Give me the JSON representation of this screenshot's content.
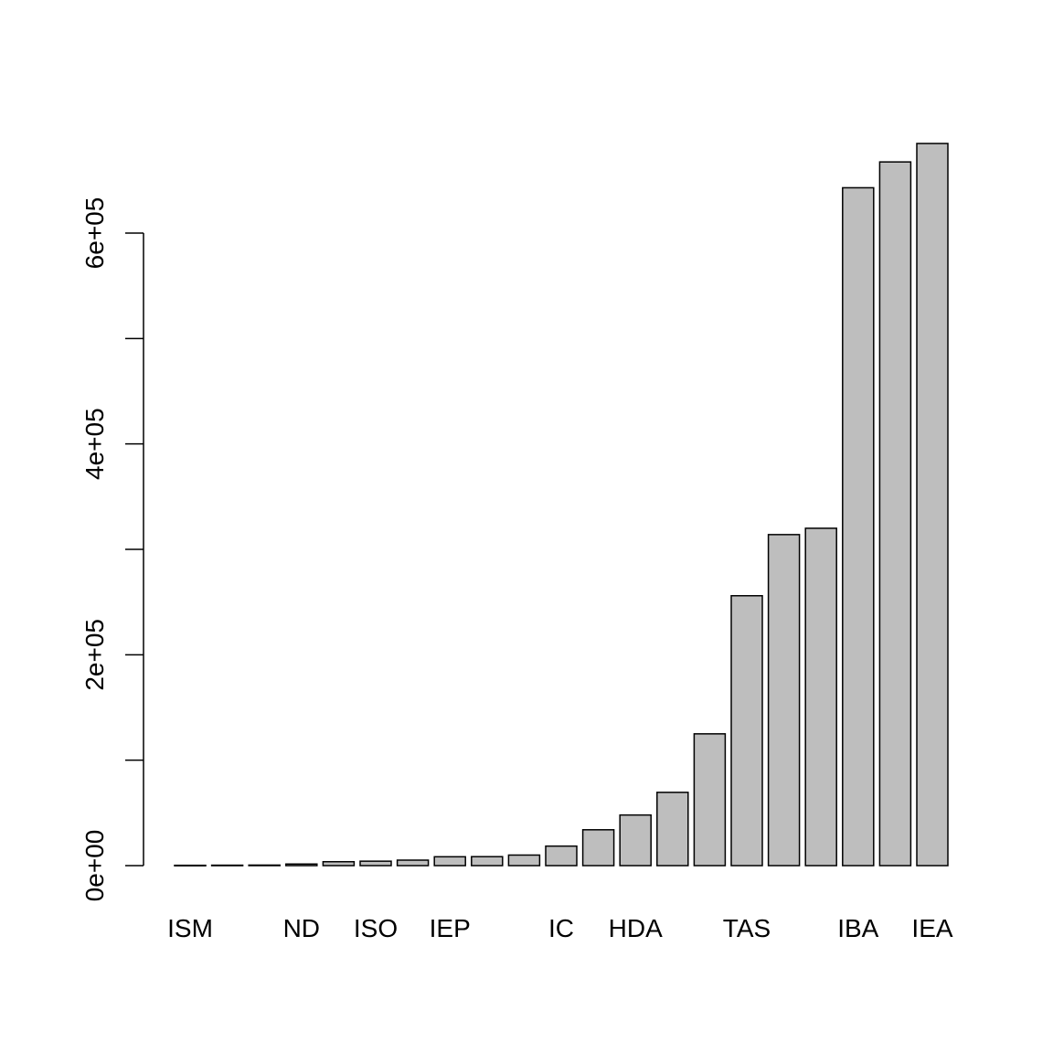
{
  "chart_data": {
    "type": "bar",
    "title": "",
    "xlabel": "",
    "ylabel": "",
    "ylim": [
      0,
      700000
    ],
    "grid": false,
    "bar_color": "#BEBEBE",
    "border_color": "#000000",
    "categories": [
      "ISM",
      "",
      "",
      "ND",
      "",
      "ISO",
      "",
      "IEP",
      "",
      "",
      "IC",
      "",
      "HDA",
      "",
      "",
      "TAS",
      "",
      "",
      "IBA",
      "",
      "IEA"
    ],
    "values": [
      300,
      400,
      500,
      1500,
      3700,
      4200,
      5200,
      8400,
      8500,
      10000,
      18500,
      34000,
      48000,
      69500,
      125000,
      256000,
      314000,
      320000,
      643000,
      667500,
      685000
    ],
    "y_ticks": [
      0,
      100000,
      200000,
      300000,
      400000,
      500000,
      600000
    ],
    "y_tick_labels": [
      "0e+00",
      "",
      "2e+05",
      "",
      "4e+05",
      "",
      "6e+05"
    ]
  }
}
